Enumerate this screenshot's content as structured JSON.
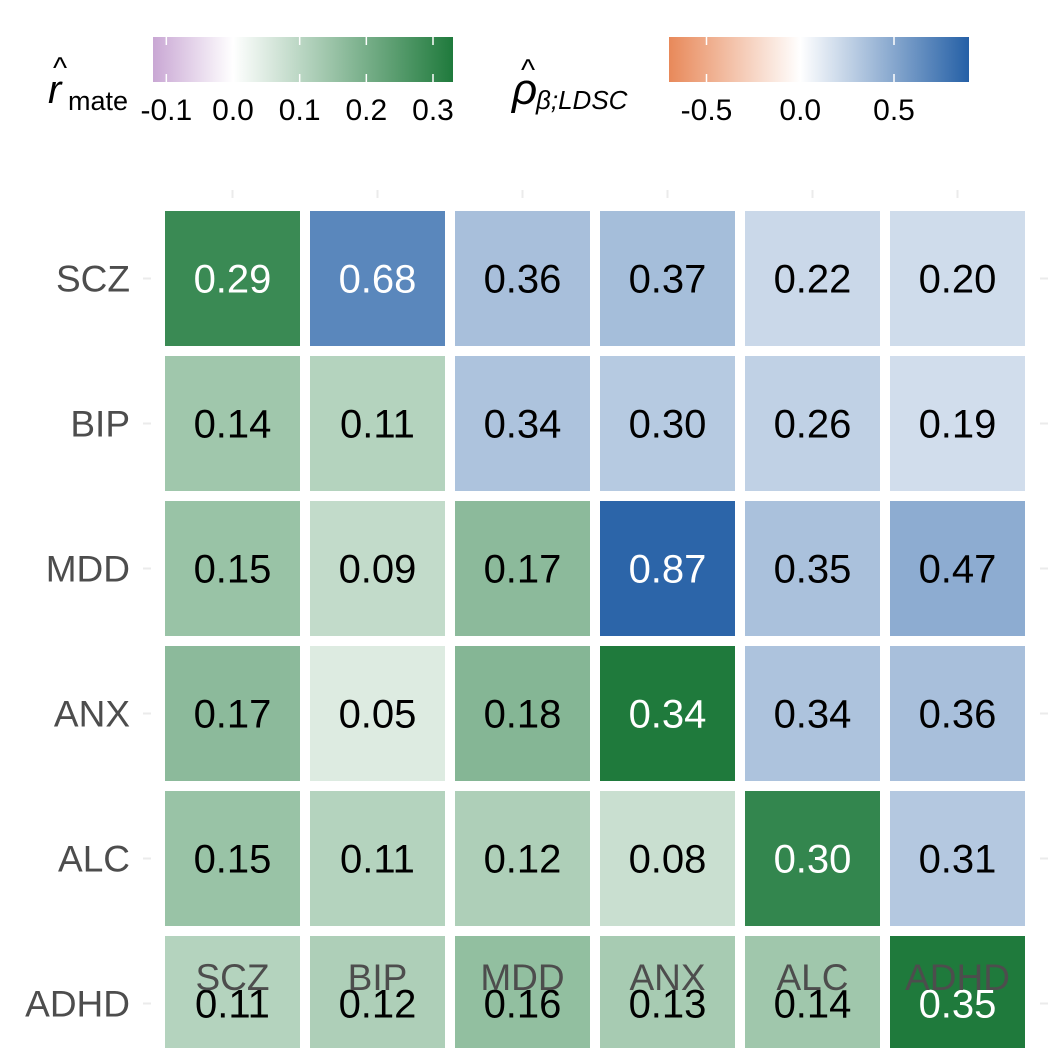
{
  "chart_data": {
    "type": "heatmap",
    "title": "",
    "xlabel": "",
    "ylabel": "",
    "x_categories": [
      "SCZ",
      "BIP",
      "MDD",
      "ANX",
      "ALC",
      "ADHD"
    ],
    "y_categories": [
      "SCZ",
      "BIP",
      "MDD",
      "ANX",
      "ALC",
      "ADHD"
    ],
    "values": [
      [
        0.29,
        0.68,
        0.36,
        0.37,
        0.22,
        0.2
      ],
      [
        0.14,
        0.11,
        0.34,
        0.3,
        0.26,
        0.19
      ],
      [
        0.15,
        0.09,
        0.17,
        0.87,
        0.35,
        0.47
      ],
      [
        0.17,
        0.05,
        0.18,
        0.34,
        0.34,
        0.36
      ],
      [
        0.15,
        0.11,
        0.12,
        0.08,
        0.3,
        0.31
      ],
      [
        0.11,
        0.12,
        0.16,
        0.13,
        0.14,
        0.35
      ]
    ],
    "cell_labels": [
      [
        "0.29",
        "0.68",
        "0.36",
        "0.37",
        "0.22",
        "0.20"
      ],
      [
        "0.14",
        "0.11",
        "0.34",
        "0.30",
        "0.26",
        "0.19"
      ],
      [
        "0.15",
        "0.09",
        "0.17",
        "0.87",
        "0.35",
        "0.47"
      ],
      [
        "0.17",
        "0.05",
        "0.18",
        "0.34",
        "0.34",
        "0.36"
      ],
      [
        "0.15",
        "0.11",
        "0.12",
        "0.08",
        "0.30",
        "0.31"
      ],
      [
        "0.11",
        "0.12",
        "0.16",
        "0.13",
        "0.14",
        "0.35"
      ]
    ],
    "scale_rule": "diagonal and lower triangle use r_mate scale; upper triangle uses rho scale",
    "legends": [
      {
        "name": "r_mate",
        "title_main": "r",
        "title_hat": "^",
        "title_sub": "mate",
        "range": [
          -0.12,
          0.33
        ],
        "ticks": [
          -0.1,
          0.0,
          0.1,
          0.2,
          0.3
        ],
        "tick_labels": [
          "-0.1",
          "0.0",
          "0.1",
          "0.2",
          "0.3"
        ],
        "colors": {
          "low": "#c9a7d4",
          "mid": "#ffffff",
          "high": "#1f7a3c"
        }
      },
      {
        "name": "rho_beta_LDSC",
        "title_main": "ρ",
        "title_hat": "^",
        "title_sub": "β;LDSC",
        "range": [
          -0.7,
          0.9
        ],
        "ticks": [
          -0.5,
          0.0,
          0.5
        ],
        "tick_labels": [
          "-0.5",
          "0.0",
          "0.5"
        ],
        "colors": {
          "low": "#e8895a",
          "mid": "#ffffff",
          "high": "#2560a6"
        }
      }
    ]
  }
}
